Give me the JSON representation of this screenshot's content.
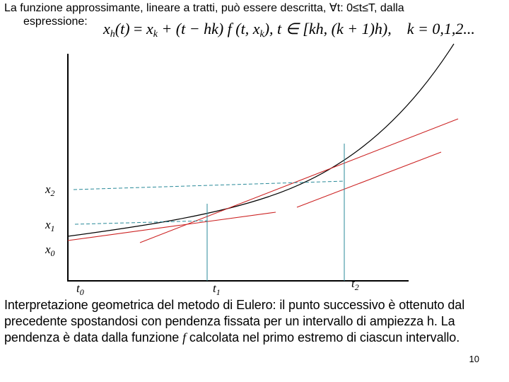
{
  "intro": {
    "line1": "La funzione approssimante, lineare a tratti, può essere descritta, ∀t: 0≤t≤T, dalla",
    "line2": "espressione:"
  },
  "formula": {
    "x": "x",
    "h": "h",
    "t": "(t)",
    "eq": " = ",
    "xk": "x",
    "k": "k",
    "rest": " + (t − hk) f (t, x",
    "rest2": "), t ∈ [kh, (k + 1)h),",
    "kvals": "k = 0,1,2..."
  },
  "labels": {
    "x2": "x",
    "x2_sub": "2",
    "x1": "x",
    "x1_sub": "1",
    "x0": "x",
    "x0_sub": "0",
    "t0": "t",
    "t0_sub": "0",
    "t1": "t",
    "t1_sub": "1",
    "t2": "t",
    "t2_sub": "2"
  },
  "caption": {
    "part1": "Interpretazione geometrica del metodo di Eulero: il punto successivo è ottenuto dal precedente spostandosi con pendenza fissata per un intervallo di ampiezza h. La pendenza è data dalla funzione ",
    "f": "f",
    "part2": " calcolata nel primo estremo di ciascun intervallo."
  },
  "page_number": "10",
  "colors": {
    "curve": "#000000",
    "tangent": "#cc2222",
    "guide": "#2a8a99"
  }
}
